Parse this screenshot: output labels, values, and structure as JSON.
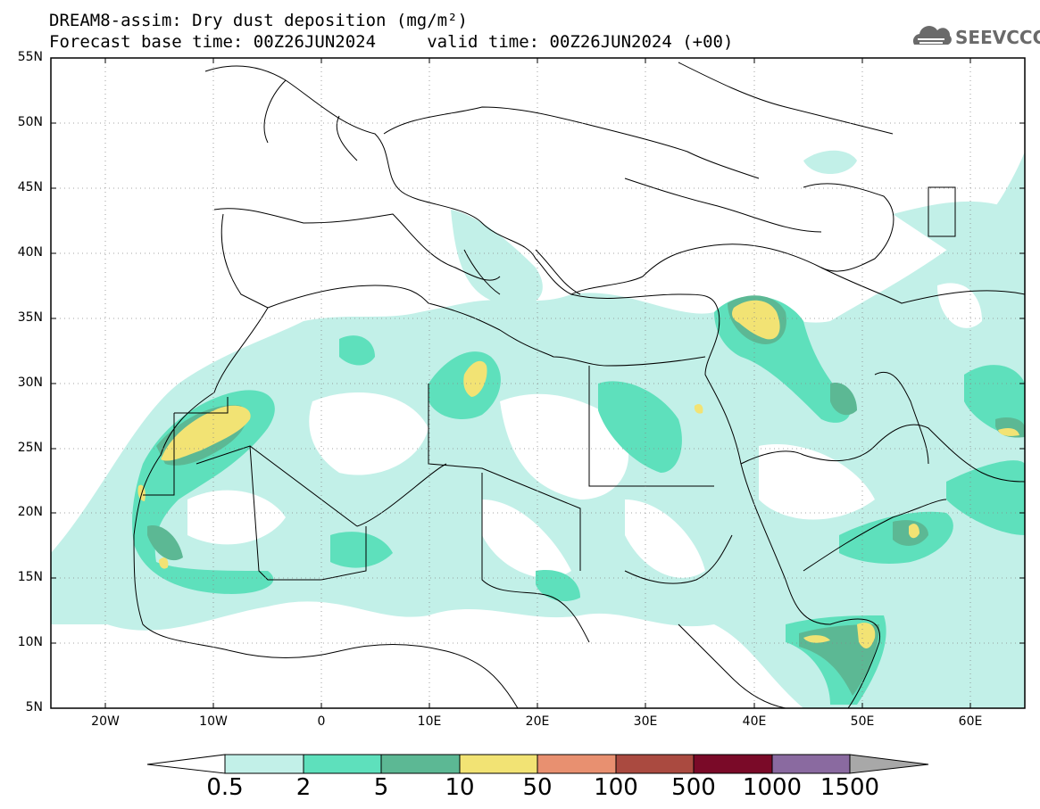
{
  "title": {
    "line1": "DREAM8-assim: Dry dust deposition (mg/m²)",
    "line2": "Forecast base time: 00Z26JUN2024     valid time: 00Z26JUN2024 (+00)"
  },
  "logo": {
    "text": "SEEVCCC",
    "icon": "cloud-icon"
  },
  "axes": {
    "lat_labels": [
      "55N",
      "50N",
      "45N",
      "40N",
      "35N",
      "30N",
      "25N",
      "20N",
      "15N",
      "10N",
      "5N"
    ],
    "lon_labels": [
      "20W",
      "10W",
      "0",
      "10E",
      "20E",
      "30E",
      "40E",
      "50E",
      "60E"
    ]
  },
  "colorbar": {
    "labels": [
      "0.5",
      "2",
      "5",
      "10",
      "50",
      "100",
      "500",
      "1000",
      "1500"
    ],
    "colors": [
      "#c2f0e8",
      "#5ee0bc",
      "#5cb894",
      "#f2e374",
      "#e89070",
      "#aa4a40",
      "#7a0a28",
      "#8a6aa0",
      "#a8a8a8"
    ]
  }
}
